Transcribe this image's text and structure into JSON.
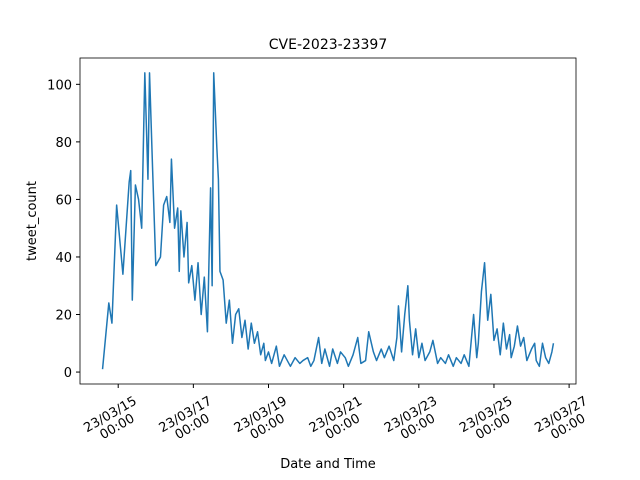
{
  "chart_data": {
    "type": "line",
    "title": "CVE-2023-23397",
    "xlabel": "Date and Time",
    "ylabel": "tweet_count",
    "x": [
      "23/03/14 14:00",
      "23/03/14 18:00",
      "23/03/14 20:00",
      "23/03/14 23:00",
      "23/03/15 03:00",
      "23/03/15 05:00",
      "23/03/15 07:00",
      "23/03/15 08:00",
      "23/03/15 09:00",
      "23/03/15 11:00",
      "23/03/15 13:00",
      "23/03/15 15:00",
      "23/03/15 17:00",
      "23/03/15 19:00",
      "23/03/15 20:00",
      "23/03/15 22:00",
      "23/03/16 00:00",
      "23/03/16 03:00",
      "23/03/16 05:00",
      "23/03/16 07:00",
      "23/03/16 09:00",
      "23/03/16 10:00",
      "23/03/16 12:00",
      "23/03/16 14:00",
      "23/03/16 15:00",
      "23/03/16 16:00",
      "23/03/16 18:00",
      "23/03/16 20:00",
      "23/03/16 21:00",
      "23/03/16 23:00",
      "23/03/17 01:00",
      "23/03/17 03:00",
      "23/03/17 05:00",
      "23/03/17 07:00",
      "23/03/17 09:00",
      "23/03/17 11:00",
      "23/03/17 12:00",
      "23/03/17 13:00",
      "23/03/17 15:00",
      "23/03/17 16:00",
      "23/03/17 17:00",
      "23/03/17 19:00",
      "23/03/17 21:00",
      "23/03/17 23:00",
      "23/03/18 01:00",
      "23/03/18 03:00",
      "23/03/18 05:00",
      "23/03/18 07:00",
      "23/03/18 09:00",
      "23/03/18 11:00",
      "23/03/18 13:00",
      "23/03/18 15:00",
      "23/03/18 17:00",
      "23/03/18 19:00",
      "23/03/18 21:00",
      "23/03/18 22:00",
      "23/03/19 00:00",
      "23/03/19 02:00",
      "23/03/19 05:00",
      "23/03/19 07:00",
      "23/03/19 10:00",
      "23/03/19 13:00",
      "23/03/19 14:00",
      "23/03/19 17:00",
      "23/03/19 20:00",
      "23/03/19 22:00",
      "23/03/20 01:00",
      "23/03/20 03:00",
      "23/03/20 05:00",
      "23/03/20 08:00",
      "23/03/20 10:00",
      "23/03/20 12:00",
      "23/03/20 15:00",
      "23/03/20 17:00",
      "23/03/20 20:00",
      "23/03/20 22:00",
      "23/03/21 01:00",
      "23/03/21 03:00",
      "23/03/21 06:00",
      "23/03/21 09:00",
      "23/03/21 11:00",
      "23/03/21 14:00",
      "23/03/21 16:00",
      "23/03/21 19:00",
      "23/03/21 21:00",
      "23/03/22 00:00",
      "23/03/22 02:00",
      "23/03/22 05:00",
      "23/03/22 08:00",
      "23/03/22 10:00",
      "23/03/22 11:00",
      "23/03/22 13:00",
      "23/03/22 15:00",
      "23/03/22 17:00",
      "23/03/22 18:00",
      "23/03/22 20:00",
      "23/03/22 22:00",
      "23/03/23 00:00",
      "23/03/23 02:00",
      "23/03/23 04:00",
      "23/03/23 07:00",
      "23/03/23 09:00",
      "23/03/23 12:00",
      "23/03/23 14:00",
      "23/03/23 17:00",
      "23/03/23 19:00",
      "23/03/23 22:00",
      "23/03/24 00:00",
      "23/03/24 03:00",
      "23/03/24 05:00",
      "23/03/24 08:00",
      "23/03/24 11:00",
      "23/03/24 13:00",
      "23/03/24 14:00",
      "23/03/24 16:00",
      "23/03/24 18:00",
      "23/03/24 20:00",
      "23/03/24 22:00",
      "23/03/25 00:00",
      "23/03/25 02:00",
      "23/03/25 04:00",
      "23/03/25 06:00",
      "23/03/25 08:00",
      "23/03/25 10:00",
      "23/03/25 11:00",
      "23/03/25 13:00",
      "23/03/25 15:00",
      "23/03/25 17:00",
      "23/03/25 19:00",
      "23/03/25 21:00",
      "23/03/26 00:00",
      "23/03/26 02:00",
      "23/03/26 03:00",
      "23/03/26 05:00",
      "23/03/26 07:00",
      "23/03/26 09:00",
      "23/03/26 11:00",
      "23/03/26 13:00",
      "23/03/26 14:00"
    ],
    "series": [
      {
        "name": "tweet_count",
        "color": "#1f77b4",
        "values": [
          1,
          24,
          17,
          58,
          34,
          50,
          66,
          70,
          25,
          65,
          60,
          50,
          104,
          67,
          104,
          70,
          37,
          40,
          58,
          61,
          52,
          74,
          50,
          57,
          35,
          56,
          40,
          52,
          31,
          37,
          25,
          38,
          20,
          33,
          14,
          64,
          30,
          104,
          78,
          67,
          35,
          32,
          17,
          25,
          10,
          20,
          22,
          12,
          18,
          8,
          17,
          10,
          14,
          6,
          10,
          4,
          7,
          3,
          9,
          2,
          6,
          3,
          2,
          5,
          3,
          4,
          5,
          2,
          4,
          12,
          3,
          8,
          2,
          8,
          3,
          7,
          5,
          2,
          6,
          12,
          3,
          4,
          14,
          7,
          4,
          8,
          5,
          9,
          4,
          12,
          23,
          7,
          20,
          30,
          18,
          6,
          15,
          5,
          10,
          4,
          7,
          11,
          3,
          5,
          3,
          6,
          2,
          5,
          3,
          6,
          2,
          20,
          5,
          10,
          28,
          38,
          18,
          27,
          11,
          15,
          6,
          17,
          8,
          13,
          5,
          9,
          16,
          9,
          12,
          4,
          8,
          10,
          4,
          2,
          10,
          5,
          3,
          7,
          10
        ]
      }
    ],
    "xlim": [
      "23/03/13 23:36",
      "23/03/27 04:24"
    ],
    "xticks": [
      {
        "value": "23/03/15 00:00",
        "label": "23/03/15\n00:00"
      },
      {
        "value": "23/03/17 00:00",
        "label": "23/03/17\n00:00"
      },
      {
        "value": "23/03/19 00:00",
        "label": "23/03/19\n00:00"
      },
      {
        "value": "23/03/21 00:00",
        "label": "23/03/21\n00:00"
      },
      {
        "value": "23/03/23 00:00",
        "label": "23/03/23\n00:00"
      },
      {
        "value": "23/03/25 00:00",
        "label": "23/03/25\n00:00"
      },
      {
        "value": "23/03/27 00:00",
        "label": "23/03/27\n00:00"
      }
    ],
    "ylim": [
      -4.15,
      109.15
    ],
    "yticks": [
      0,
      20,
      40,
      60,
      80,
      100
    ],
    "grid": false
  }
}
